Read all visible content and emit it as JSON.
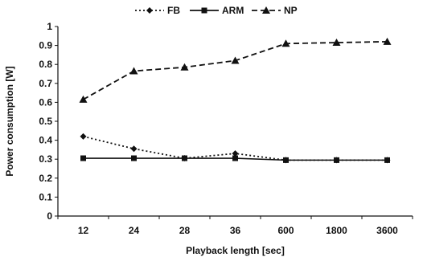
{
  "chart_data": {
    "type": "line",
    "categories": [
      "12",
      "24",
      "28",
      "36",
      "600",
      "1800",
      "3600"
    ],
    "series": [
      {
        "name": "FB",
        "values": [
          0.42,
          0.355,
          0.305,
          0.33,
          0.295,
          0.295,
          0.295
        ],
        "line_style": "dotted",
        "marker": "diamond"
      },
      {
        "name": "ARM",
        "values": [
          0.305,
          0.305,
          0.305,
          0.305,
          0.295,
          0.295,
          0.295
        ],
        "line_style": "solid",
        "marker": "square"
      },
      {
        "name": "NP",
        "values": [
          0.615,
          0.765,
          0.785,
          0.82,
          0.91,
          0.915,
          0.92
        ],
        "line_style": "dashed",
        "marker": "triangle"
      }
    ],
    "xlabel": "Playback length [sec]",
    "ylabel": "Power consumption [W]",
    "ylim": [
      0,
      1
    ],
    "yticks": [
      "0",
      "0.1",
      "0.2",
      "0.3",
      "0.4",
      "0.5",
      "0.6",
      "0.7",
      "0.8",
      "0.9",
      "1"
    ],
    "grid": false,
    "legend_position": "top-center",
    "colors": {
      "line": "#111111",
      "background": "#ffffff"
    }
  }
}
